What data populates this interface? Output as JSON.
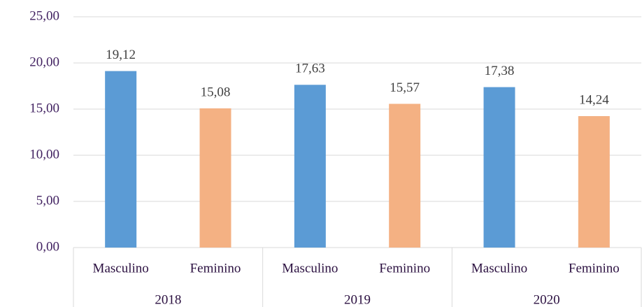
{
  "chart_data": {
    "type": "bar",
    "groups": [
      "2018",
      "2019",
      "2020"
    ],
    "categories": [
      "Masculino",
      "Feminino",
      "Masculino",
      "Feminino",
      "Masculino",
      "Feminino"
    ],
    "values": [
      19.12,
      15.08,
      17.63,
      15.57,
      17.38,
      14.24
    ],
    "value_labels": [
      "19,12",
      "15,08",
      "17,63",
      "15,57",
      "17,38",
      "14,24"
    ],
    "colors": [
      "#5b9bd5",
      "#f4b183",
      "#5b9bd5",
      "#f4b183",
      "#5b9bd5",
      "#f4b183"
    ],
    "ylim": [
      0,
      25
    ],
    "yticks": [
      {
        "value": 0,
        "label": "0,00"
      },
      {
        "value": 5,
        "label": "5,00"
      },
      {
        "value": 10,
        "label": "10,00"
      },
      {
        "value": 15,
        "label": "15,00"
      },
      {
        "value": 20,
        "label": "20,00"
      },
      {
        "value": 25,
        "label": "25,00"
      }
    ],
    "grid": true
  }
}
